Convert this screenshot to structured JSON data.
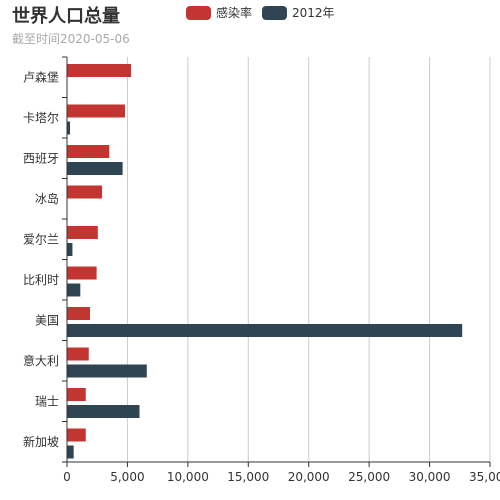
{
  "title": "世界人口总量",
  "subtitle": "截至时间2020-05-06",
  "colors": {
    "series0": "#c23531",
    "series1": "#2f4554",
    "grid": "#cccccc",
    "axis": "#333333"
  },
  "chart_data": {
    "type": "bar",
    "orientation": "horizontal",
    "categories": [
      "卢森堡",
      "卡塔尔",
      "西班牙",
      "冰岛",
      "爱尔兰",
      "比利时",
      "美国",
      "意大利",
      "瑞士",
      "新加坡"
    ],
    "series": [
      {
        "name": "感染率",
        "values": [
          5300,
          4800,
          3500,
          2900,
          2550,
          2450,
          1900,
          1800,
          1550,
          1550
        ]
      },
      {
        "name": "2012年",
        "values": [
          0,
          250,
          4600,
          0,
          450,
          1100,
          32700,
          6600,
          6000,
          550
        ]
      }
    ],
    "xlim": [
      0,
      35000
    ],
    "xticks": [
      0,
      5000,
      10000,
      15000,
      20000,
      25000,
      30000,
      35000
    ],
    "xtick_labels": [
      "0",
      "5,000",
      "10,000",
      "15,000",
      "20,000",
      "25,000",
      "30,000",
      "35,000"
    ],
    "grid": true,
    "legend_position": "top-center"
  }
}
